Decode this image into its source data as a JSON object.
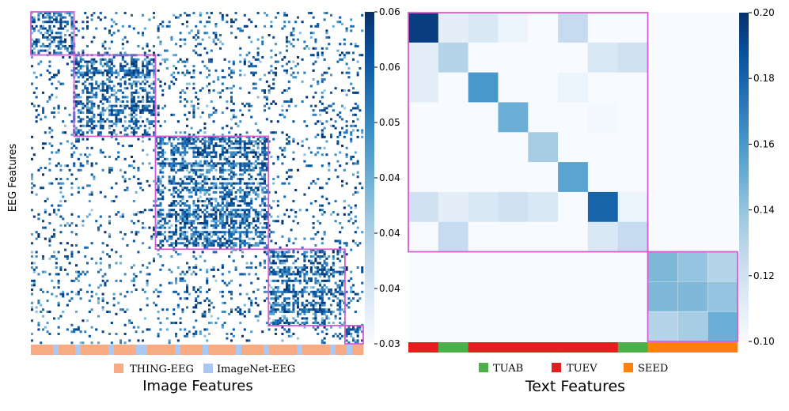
{
  "chart_data": [
    {
      "type": "heatmap",
      "title": "",
      "xlabel": "Image Features",
      "ylabel": "EEG Features",
      "colorbar": {
        "min": 0.03,
        "max": 0.06,
        "tick_labels": [
          "0.06",
          "0.06",
          "0.05",
          "0.04",
          "0.04",
          "0.04",
          "0.03"
        ]
      },
      "colormap": [
        "#f7fbff",
        "#deebf7",
        "#c6dbef",
        "#9ecae1",
        "#6baed6",
        "#4292c6",
        "#2171b5",
        "#08519c",
        "#08306b"
      ],
      "clusters": [
        {
          "start": 0.0,
          "end": 0.13
        },
        {
          "start": 0.13,
          "end": 0.375
        },
        {
          "start": 0.375,
          "end": 0.715
        },
        {
          "start": 0.715,
          "end": 0.945
        },
        {
          "start": 0.945,
          "end": 1.0
        }
      ],
      "source_strip": [
        "T",
        "T",
        "T",
        "T",
        "I",
        "T",
        "T",
        "T",
        "I",
        "T",
        "T",
        "T",
        "T",
        "T",
        "I",
        "T",
        "T",
        "T",
        "T",
        "I",
        "I",
        "T",
        "T",
        "T",
        "T",
        "T",
        "I",
        "T",
        "T",
        "T",
        "T",
        "I",
        "T",
        "T",
        "T",
        "T",
        "T",
        "I",
        "T",
        "T",
        "T",
        "T",
        "I",
        "T",
        "T",
        "T",
        "T",
        "T",
        "I",
        "T",
        "T",
        "T",
        "T",
        "T",
        "I",
        "T",
        "T",
        "I",
        "T",
        "T"
      ],
      "legend": [
        {
          "label": "THING-EEG",
          "color": "#f7ab82"
        },
        {
          "label": "ImageNet-EEG",
          "color": "#a9c8f2"
        }
      ]
    },
    {
      "type": "heatmap",
      "title": "",
      "xlabel": "Text Features",
      "ylabel": "",
      "colorbar": {
        "min": 0.1,
        "max": 0.2,
        "ticks": [
          0.1,
          0.12,
          0.14,
          0.16,
          0.18,
          0.2
        ],
        "tick_labels": [
          "0.10",
          "0.12",
          "0.14",
          "0.16",
          "0.18",
          "0.20"
        ]
      },
      "colormap": [
        "#f7fbff",
        "#deebf7",
        "#c6dbef",
        "#9ecae1",
        "#6baed6",
        "#4292c6",
        "#2171b5",
        "#08519c",
        "#08306b"
      ],
      "matrix": [
        [
          0.195,
          0.11,
          0.115,
          0.105,
          0.1,
          0.125,
          0.1,
          0.1,
          0.1,
          0.1,
          0.1
        ],
        [
          0.11,
          0.13,
          0.1,
          0.1,
          0.1,
          0.1,
          0.115,
          0.12,
          0.1,
          0.1,
          0.1
        ],
        [
          0.11,
          0.1,
          0.16,
          0.1,
          0.1,
          0.105,
          0.1,
          0.1,
          0.1,
          0.1,
          0.1
        ],
        [
          0.1,
          0.1,
          0.1,
          0.15,
          0.1,
          0.1,
          0.102,
          0.1,
          0.1,
          0.1,
          0.1
        ],
        [
          0.1,
          0.1,
          0.1,
          0.1,
          0.135,
          0.1,
          0.1,
          0.1,
          0.1,
          0.1,
          0.1
        ],
        [
          0.1,
          0.1,
          0.1,
          0.1,
          0.1,
          0.155,
          0.1,
          0.1,
          0.1,
          0.1,
          0.1
        ],
        [
          0.12,
          0.11,
          0.115,
          0.12,
          0.115,
          0.1,
          0.18,
          0.105,
          0.1,
          0.1,
          0.1
        ],
        [
          0.1,
          0.125,
          0.1,
          0.1,
          0.1,
          0.1,
          0.115,
          0.125,
          0.1,
          0.1,
          0.1
        ],
        [
          0.1,
          0.1,
          0.1,
          0.1,
          0.1,
          0.1,
          0.1,
          0.1,
          0.145,
          0.14,
          0.13
        ],
        [
          0.1,
          0.1,
          0.1,
          0.1,
          0.1,
          0.1,
          0.1,
          0.1,
          0.145,
          0.145,
          0.14
        ],
        [
          0.1,
          0.1,
          0.1,
          0.1,
          0.1,
          0.1,
          0.1,
          0.1,
          0.13,
          0.135,
          0.15
        ]
      ],
      "row_groups": [
        {
          "start": 0,
          "end": 8
        },
        {
          "start": 8,
          "end": 11
        }
      ],
      "column_sources": [
        "TUEV",
        "TUAB",
        "TUEV",
        "TUEV",
        "TUEV",
        "TUEV",
        "TUEV",
        "TUAB",
        "SEED",
        "SEED",
        "SEED"
      ],
      "legend": [
        {
          "label": "TUAB",
          "color": "#4caf47"
        },
        {
          "label": "TUEV",
          "color": "#e21f1f"
        },
        {
          "label": "SEED",
          "color": "#ff800e"
        }
      ]
    }
  ]
}
